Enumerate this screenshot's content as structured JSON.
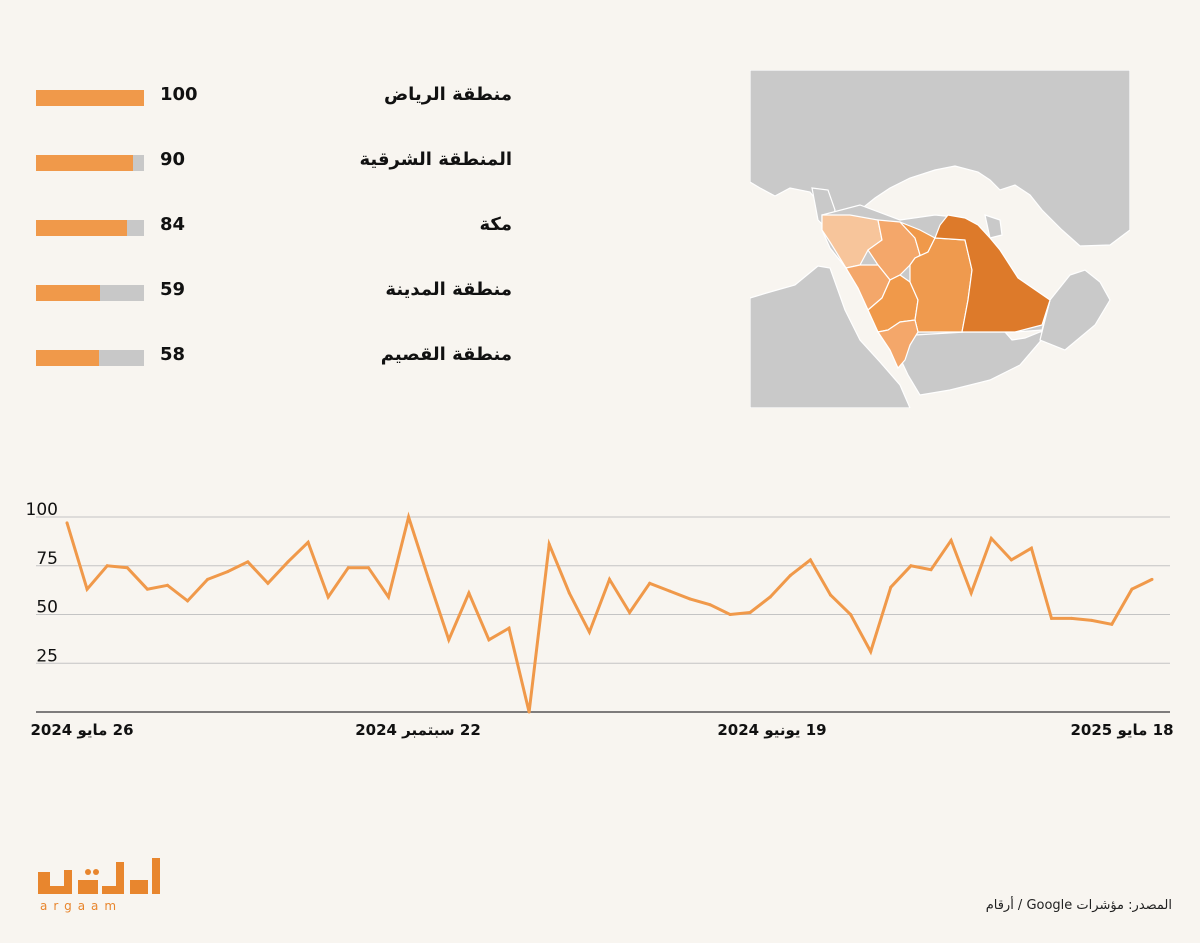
{
  "regions": [
    {
      "name": "منطقة الرياض",
      "value": 100
    },
    {
      "name": "المنطقة الشرقية",
      "value": 90
    },
    {
      "name": "مكة",
      "value": 84
    },
    {
      "name": "منطقة المدينة",
      "value": 59
    },
    {
      "name": "منطقة القصيم",
      "value": 58
    }
  ],
  "colors": {
    "bar_fill": "#f0994a",
    "bar_track": "#c8c8c8",
    "line": "#f0994a",
    "land": "#c9c9c9",
    "riyadh": "#dd7a2a",
    "eastern_band": "#ef9a4e",
    "western": "#f4a76a",
    "north_west": "#f7c59b"
  },
  "chart_data": {
    "type": "line",
    "ylim": [
      0,
      100
    ],
    "yticks": [
      25,
      50,
      75,
      100
    ],
    "series": [
      {
        "values": [
          97,
          63,
          75,
          74,
          63,
          65,
          57,
          68,
          72,
          77,
          66,
          77,
          87,
          59,
          74,
          74,
          59,
          100,
          68,
          37,
          61,
          37,
          43,
          0,
          86,
          61,
          41,
          68,
          51,
          66,
          62,
          58,
          55,
          50,
          51,
          59,
          70,
          78,
          60,
          50,
          31,
          64,
          75,
          73,
          88,
          61,
          89,
          78,
          84,
          48,
          48,
          47,
          45,
          63,
          68
        ]
      }
    ],
    "x_tick_labels": [
      "26 مايو 2024",
      "22 سبتمبر 2024",
      "19 يونيو 2024",
      "18 مايو 2025"
    ]
  },
  "logo": {
    "arabic": "أرقام",
    "latin": "argaam"
  },
  "source": "المصدر: مؤشرات Google / أرقام"
}
